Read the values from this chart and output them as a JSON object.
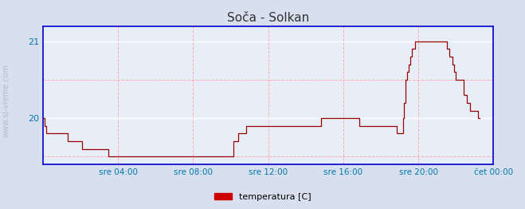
{
  "title": "Soča - Solkan",
  "legend_label": "temperatura [C]",
  "legend_color": "#cc0000",
  "bg_color": "#d8e0f0",
  "plot_bg_color": "#e8eef8",
  "grid_color_major": "#ffffff",
  "grid_color_minor": "#ffaaaa",
  "line_color": "#990000",
  "axis_color": "#0000cc",
  "title_color": "#333333",
  "tick_label_color": "#0077aa",
  "watermark_color": "#aabbcc",
  "ylim": [
    19.4,
    21.2
  ],
  "yticks": [
    20,
    21
  ],
  "xlim": [
    0,
    288
  ],
  "x_tick_positions": [
    48,
    96,
    144,
    192,
    240,
    288
  ],
  "x_tick_labels": [
    "sre 04:00",
    "sre 08:00",
    "sre 12:00",
    "sre 16:00",
    "sre 20:00",
    "čet 00:00"
  ],
  "temp_data": [
    20.0,
    19.9,
    19.8,
    19.8,
    19.8,
    19.8,
    19.8,
    19.8,
    19.8,
    19.8,
    19.8,
    19.8,
    19.8,
    19.8,
    19.8,
    19.8,
    19.7,
    19.7,
    19.7,
    19.7,
    19.7,
    19.7,
    19.7,
    19.7,
    19.7,
    19.6,
    19.6,
    19.6,
    19.6,
    19.6,
    19.6,
    19.6,
    19.6,
    19.6,
    19.6,
    19.6,
    19.6,
    19.6,
    19.6,
    19.6,
    19.6,
    19.6,
    19.5,
    19.5,
    19.5,
    19.5,
    19.5,
    19.5,
    19.5,
    19.5,
    19.5,
    19.5,
    19.5,
    19.5,
    19.5,
    19.5,
    19.5,
    19.5,
    19.5,
    19.5,
    19.5,
    19.5,
    19.5,
    19.5,
    19.5,
    19.5,
    19.5,
    19.5,
    19.5,
    19.5,
    19.5,
    19.5,
    19.5,
    19.5,
    19.5,
    19.5,
    19.5,
    19.5,
    19.5,
    19.5,
    19.5,
    19.5,
    19.5,
    19.5,
    19.5,
    19.5,
    19.5,
    19.5,
    19.5,
    19.5,
    19.5,
    19.5,
    19.5,
    19.5,
    19.5,
    19.5,
    19.5,
    19.5,
    19.5,
    19.5,
    19.5,
    19.5,
    19.5,
    19.5,
    19.5,
    19.5,
    19.5,
    19.5,
    19.5,
    19.5,
    19.5,
    19.5,
    19.5,
    19.5,
    19.5,
    19.5,
    19.5,
    19.5,
    19.5,
    19.5,
    19.5,
    19.5,
    19.7,
    19.7,
    19.7,
    19.8,
    19.8,
    19.8,
    19.8,
    19.8,
    19.9,
    19.9,
    19.9,
    19.9,
    19.9,
    19.9,
    19.9,
    19.9,
    19.9,
    19.9,
    19.9,
    19.9,
    19.9,
    19.9,
    19.9,
    19.9,
    19.9,
    19.9,
    19.9,
    19.9,
    19.9,
    19.9,
    19.9,
    19.9,
    19.9,
    19.9,
    19.9,
    19.9,
    19.9,
    19.9,
    19.9,
    19.9,
    19.9,
    19.9,
    19.9,
    19.9,
    19.9,
    19.9,
    19.9,
    19.9,
    19.9,
    19.9,
    19.9,
    19.9,
    19.9,
    19.9,
    19.9,
    19.9,
    20.0,
    20.0,
    20.0,
    20.0,
    20.0,
    20.0,
    20.0,
    20.0,
    20.0,
    20.0,
    20.0,
    20.0,
    20.0,
    20.0,
    20.0,
    20.0,
    20.0,
    20.0,
    20.0,
    20.0,
    20.0,
    20.0,
    20.0,
    20.0,
    19.9,
    19.9,
    19.9,
    19.9,
    19.9,
    19.9,
    19.9,
    19.9,
    19.9,
    19.9,
    19.9,
    19.9,
    19.9,
    19.9,
    19.9,
    19.9,
    19.9,
    19.9,
    19.9,
    19.9,
    19.9,
    19.9,
    19.9,
    19.9,
    19.8,
    19.8,
    19.8,
    19.8,
    20.0,
    20.2,
    20.5,
    20.6,
    20.7,
    20.8,
    20.9,
    20.9,
    21.0,
    21.0,
    21.0,
    21.0,
    21.0,
    21.0,
    21.0,
    21.0,
    21.0,
    21.0,
    21.0,
    21.0,
    21.0,
    21.0,
    21.0,
    21.0,
    21.0,
    21.0,
    21.0,
    21.0,
    20.9,
    20.9,
    20.8,
    20.8,
    20.7,
    20.6,
    20.5,
    20.5,
    20.5,
    20.5,
    20.5,
    20.3,
    20.3,
    20.2,
    20.2,
    20.1,
    20.1,
    20.1,
    20.1,
    20.1,
    20.0,
    20.0
  ]
}
